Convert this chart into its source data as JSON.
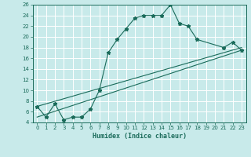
{
  "xlabel": "Humidex (Indice chaleur)",
  "xlim": [
    -0.5,
    23.5
  ],
  "ylim": [
    4,
    26
  ],
  "xticks": [
    0,
    1,
    2,
    3,
    4,
    5,
    6,
    7,
    8,
    9,
    10,
    11,
    12,
    13,
    14,
    15,
    16,
    17,
    18,
    19,
    20,
    21,
    22,
    23
  ],
  "yticks": [
    4,
    6,
    8,
    10,
    12,
    14,
    16,
    18,
    20,
    22,
    24,
    26
  ],
  "line_color": "#1a6b5a",
  "background_color": "#c8eaea",
  "grid_color": "#ffffff",
  "line1_x": [
    0,
    1,
    2,
    3,
    4,
    5,
    6,
    7,
    8,
    9,
    10,
    11,
    12,
    13,
    14,
    15,
    16,
    17,
    18,
    21,
    22,
    23
  ],
  "line1_y": [
    7,
    5,
    7.5,
    4.5,
    5,
    5,
    6.5,
    10,
    17,
    19.5,
    21.5,
    23.5,
    24,
    24,
    24,
    26,
    22.5,
    22,
    19.5,
    18,
    19,
    17.5
  ],
  "line2_x": [
    0,
    23
  ],
  "line2_y": [
    5,
    17.5
  ],
  "line3_x": [
    0,
    23
  ],
  "line3_y": [
    7,
    18
  ]
}
